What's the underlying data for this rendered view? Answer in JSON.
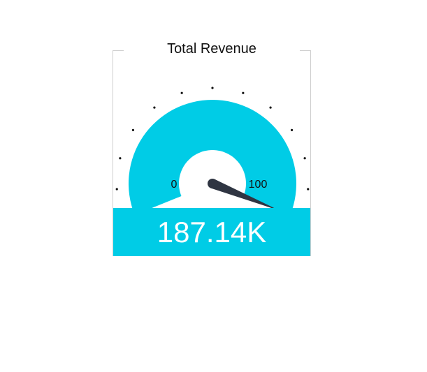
{
  "chart_data": {
    "type": "gauge",
    "title": "Total Revenue",
    "min": 0,
    "max": 100,
    "min_label": "0",
    "max_label": "100",
    "pointer_value": 100,
    "display_value": "187.14K",
    "colors": {
      "band": "#00cce6",
      "needle": "#2f3542",
      "ticks": "#111111",
      "value_box": "#00cce6",
      "value_text": "#ffffff"
    }
  }
}
